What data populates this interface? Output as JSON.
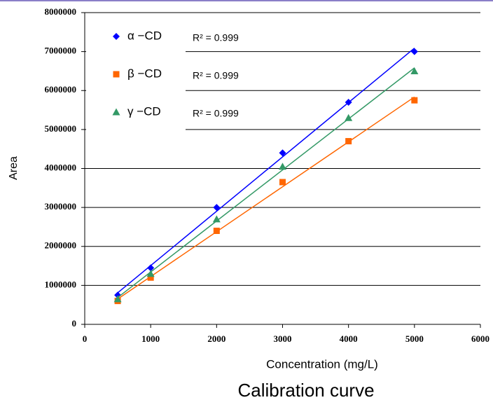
{
  "chart_data": {
    "type": "scatter",
    "xlabel": "Concentration (mg/L)",
    "ylabel": "Area",
    "caption": "Calibration curve",
    "x": [
      500,
      1000,
      2000,
      3000,
      4000,
      5000
    ],
    "series": [
      {
        "name": "α −CD",
        "color": "#0000ff",
        "marker": "diamond",
        "values": [
          750000,
          1450000,
          3000000,
          4400000,
          5700000,
          7000000
        ]
      },
      {
        "name": "β −CD",
        "color": "#ff6600",
        "marker": "square",
        "values": [
          600000,
          1200000,
          2400000,
          3650000,
          4700000,
          5750000
        ]
      },
      {
        "name": "γ −CD",
        "color": "#339966",
        "marker": "triangle",
        "values": [
          650000,
          1300000,
          2700000,
          4050000,
          5300000,
          6500000
        ]
      }
    ],
    "annotations": [
      "R² = 0.999",
      "R² = 0.999",
      "R² = 0.999"
    ],
    "trendline": true,
    "legend": "upper left",
    "grid": true,
    "xlim": [
      0,
      6000
    ],
    "xticks": [
      0,
      1000,
      2000,
      3000,
      4000,
      5000,
      6000
    ],
    "ylim": [
      0,
      8000000
    ],
    "yticks": [
      0,
      1000000,
      2000000,
      3000000,
      4000000,
      5000000,
      6000000,
      7000000,
      8000000
    ]
  }
}
